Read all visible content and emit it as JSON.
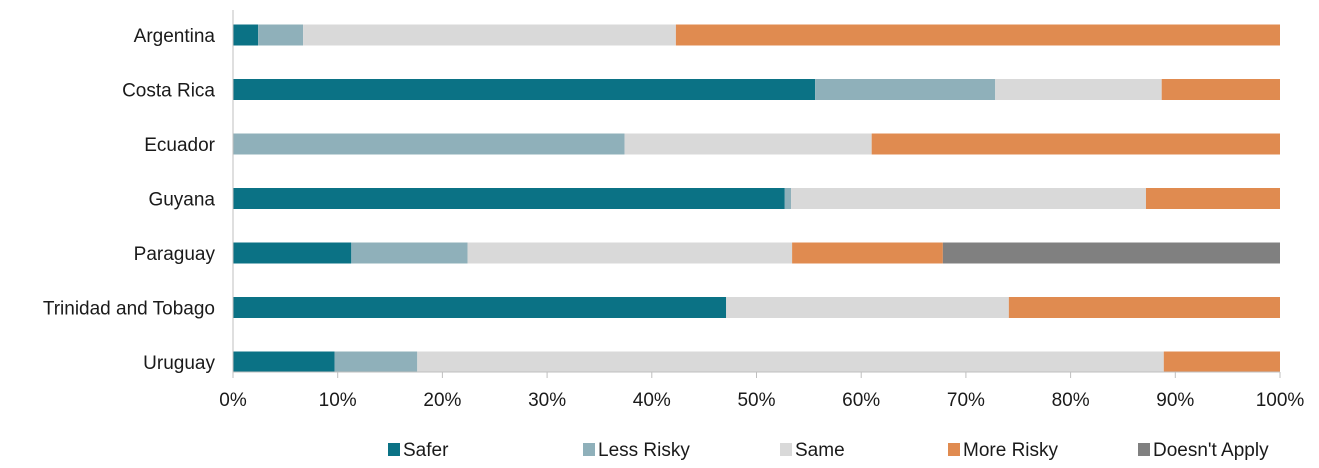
{
  "chart_data": {
    "type": "bar",
    "orientation": "horizontal",
    "stacked": true,
    "categories": [
      "Argentina",
      "Costa Rica",
      "Ecuador",
      "Guyana",
      "Paraguay",
      "Trinidad and Tobago",
      "Uruguay"
    ],
    "series": [
      {
        "name": "Safer",
        "color": "#0b7285",
        "values": [
          2.4,
          55.6,
          0.0,
          52.7,
          11.3,
          47.1,
          9.7
        ]
      },
      {
        "name": "Less Risky",
        "color": "#8fb0ba",
        "values": [
          4.3,
          17.2,
          37.4,
          0.6,
          11.1,
          0.0,
          7.9
        ]
      },
      {
        "name": "Same",
        "color": "#d9d9d9",
        "values": [
          35.6,
          15.9,
          23.6,
          33.9,
          31.0,
          27.0,
          71.3
        ]
      },
      {
        "name": "More Risky",
        "color": "#e08b50",
        "values": [
          57.7,
          11.3,
          39.0,
          12.8,
          14.4,
          25.9,
          11.1
        ]
      },
      {
        "name": "Doesn't Apply",
        "color": "#808080",
        "values": [
          0,
          0,
          0,
          0,
          32.2,
          0,
          0
        ]
      }
    ],
    "xlim": [
      0,
      100
    ],
    "x_ticks": [
      "0%",
      "10%",
      "20%",
      "30%",
      "40%",
      "50%",
      "60%",
      "70%",
      "80%",
      "90%",
      "100%"
    ],
    "title": "",
    "xlabel": "",
    "ylabel": "",
    "grid": false,
    "legend_position": "bottom"
  }
}
